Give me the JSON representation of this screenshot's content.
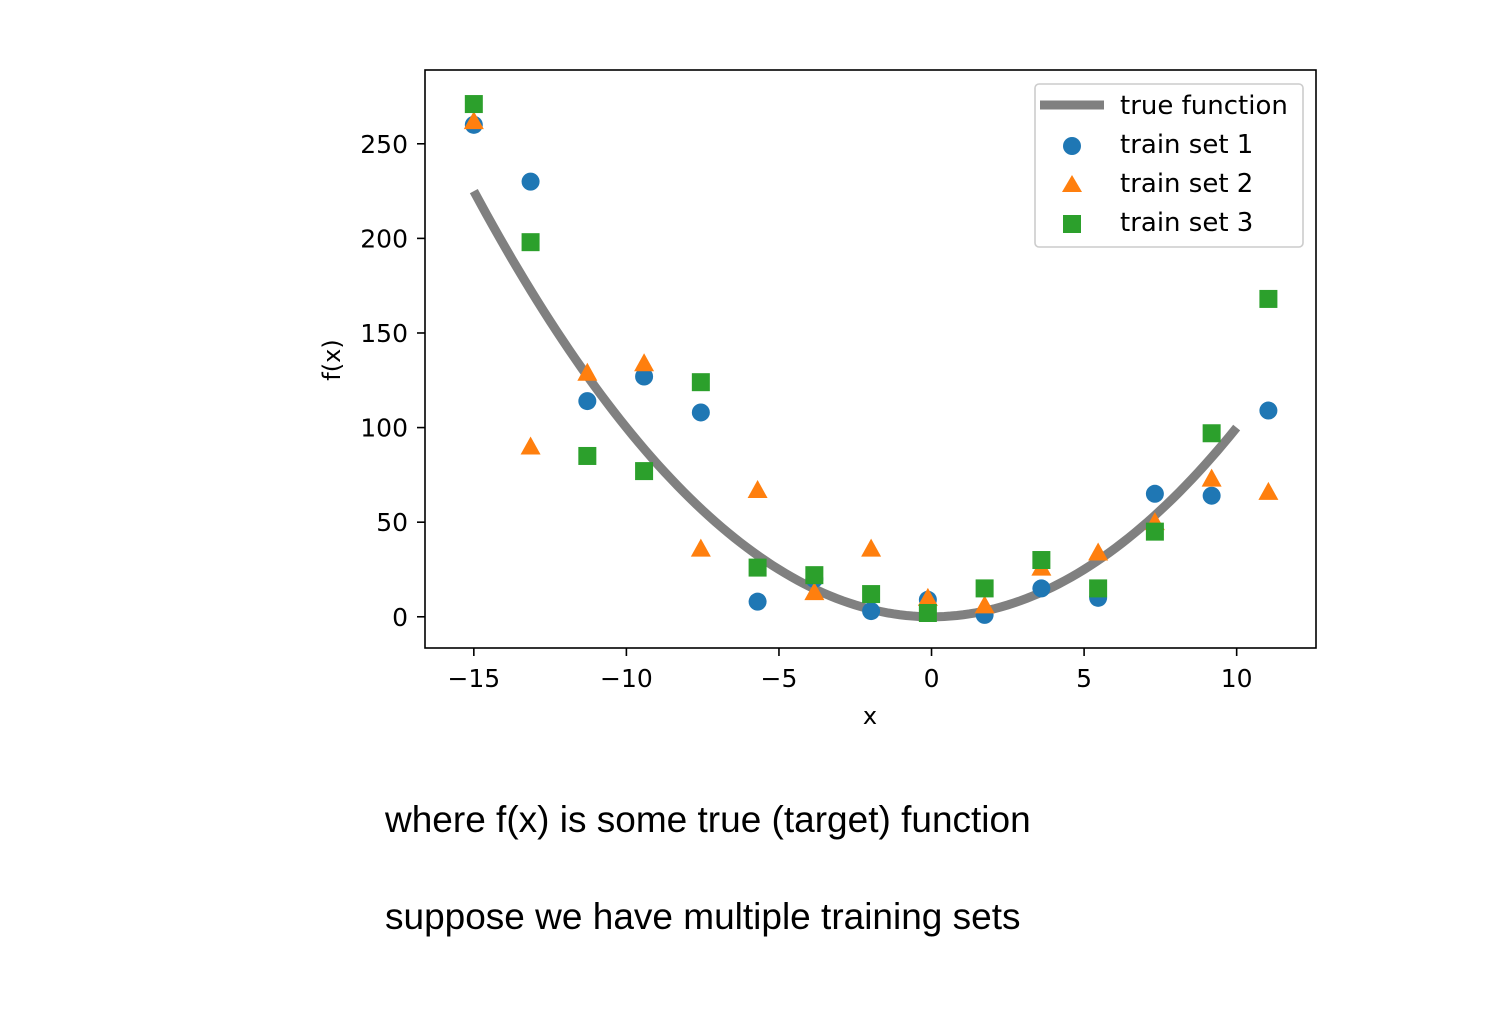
{
  "chart_data": {
    "type": "scatter",
    "xlabel": "x",
    "ylabel": "f(x)",
    "xlim": [
      -16.6,
      12.6
    ],
    "ylim": [
      -16.5,
      289
    ],
    "xticks": [
      -15,
      -10,
      -5,
      0,
      5,
      10
    ],
    "xtick_labels": [
      "−15",
      "−10",
      "−5",
      "0",
      "5",
      "10"
    ],
    "yticks": [
      0,
      50,
      100,
      150,
      200,
      250
    ],
    "ytick_labels": [
      "0",
      "50",
      "100",
      "150",
      "200",
      "250"
    ],
    "grid": false,
    "legend_position": "top-right",
    "true_function": {
      "name": "true function",
      "formula": "x^2",
      "x_range": [
        -15,
        10
      ],
      "color": "#808080"
    },
    "x": [
      -15,
      -13.14,
      -11.28,
      -9.42,
      -7.56,
      -5.7,
      -3.84,
      -1.98,
      -0.12,
      1.74,
      3.6,
      5.46,
      7.32,
      9.18,
      11.04
    ],
    "series": [
      {
        "name": "train set 1",
        "marker": "circle",
        "color": "#1f77b4",
        "values": [
          260,
          230,
          114,
          127,
          108,
          8,
          20,
          3,
          9,
          1,
          15,
          10,
          65,
          64,
          109
        ]
      },
      {
        "name": "train set 2",
        "marker": "triangle",
        "color": "#ff7f0e",
        "values": [
          262,
          90,
          129,
          134,
          36,
          67,
          13,
          36,
          10,
          6,
          26,
          34,
          50,
          73,
          66
        ]
      },
      {
        "name": "train set 3",
        "marker": "square",
        "color": "#2ca02c",
        "values": [
          271,
          198,
          85,
          77,
          124,
          26,
          22,
          12,
          2,
          15,
          30,
          15,
          45,
          97,
          168
        ]
      }
    ]
  },
  "captions": [
    "where f(x) is some true (target) function",
    "suppose we have multiple training sets"
  ]
}
